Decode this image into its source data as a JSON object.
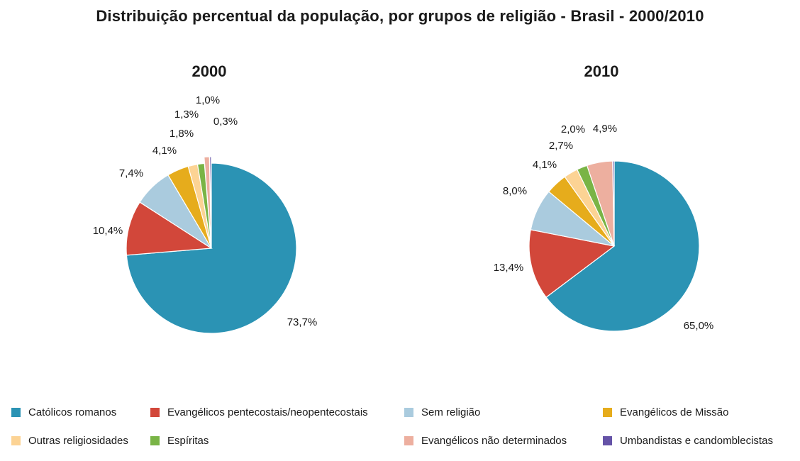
{
  "chart_data": {
    "type": "pie",
    "title": "Distribuição percentual da população, por grupos de religião - Brasil - 2000/2010",
    "categories": [
      "Católicos romanos",
      "Evangélicos pentecostais/neopentecostais",
      "Sem religião",
      "Evangélicos de Missão",
      "Outras religiosidades",
      "Espíritas",
      "Evangélicos não determinados",
      "Umbandistas e candomblecistas"
    ],
    "colors": [
      "#2b93b4",
      "#d2473a",
      "#aacbde",
      "#e6ac1c",
      "#fcd394",
      "#79b446",
      "#edaf9f",
      "#6553a7"
    ],
    "series": [
      {
        "name": "2000",
        "values": [
          73.7,
          10.4,
          7.4,
          4.1,
          1.8,
          1.3,
          1.0,
          0.3
        ],
        "labels": [
          "73,7%",
          "10,4%",
          "7,4%",
          "4,1%",
          "1,8%",
          "1,3%",
          "1,0%",
          "0,3%"
        ]
      },
      {
        "name": "2010",
        "values": [
          65.0,
          13.4,
          8.0,
          4.1,
          2.7,
          2.0,
          4.9,
          0.3
        ],
        "labels": [
          "65,0%",
          "13,4%",
          "8,0%",
          "4,1%",
          "2,7%",
          "2,0%",
          "4,9%",
          ""
        ]
      }
    ],
    "legend_position": "bottom"
  }
}
